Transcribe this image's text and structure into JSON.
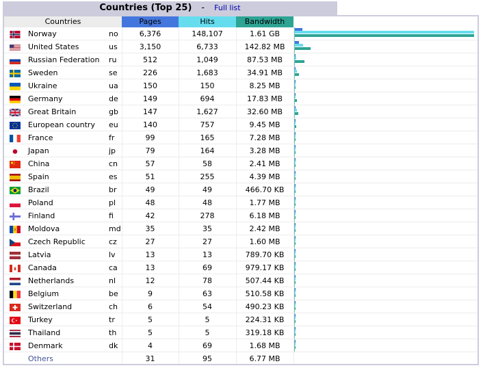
{
  "title": "Countries (Top 25)",
  "separator": "-",
  "full_list_link": "Full list",
  "headers": {
    "countries": "Countries",
    "pages": "Pages",
    "hits": "Hits",
    "bandwidth": "Bandwidth"
  },
  "colors": {
    "pages": "#4477dd",
    "hits": "#66ddee",
    "bandwidth": "#2ea495",
    "frame": "#ccccdd"
  },
  "rows": [
    {
      "flag": "norway-flag",
      "country": "Norway",
      "code": "no",
      "pages": "6,376",
      "hits": "148,107",
      "bandwidth": "1.61 GB",
      "bar_pages": 0.043,
      "bar_hits": 1.0,
      "bar_bw": 1.0
    },
    {
      "flag": "united-states-flag",
      "country": "United States",
      "code": "us",
      "pages": "3,150",
      "hits": "6,733",
      "bandwidth": "142.82 MB",
      "bar_pages": 0.021,
      "bar_hits": 0.045,
      "bar_bw": 0.087
    },
    {
      "flag": "russia-flag",
      "country": "Russian Federation",
      "code": "ru",
      "pages": "512",
      "hits": "1,049",
      "bandwidth": "87.53 MB",
      "bar_pages": 0.0035,
      "bar_hits": 0.007,
      "bar_bw": 0.053
    },
    {
      "flag": "sweden-flag",
      "country": "Sweden",
      "code": "se",
      "pages": "226",
      "hits": "1,683",
      "bandwidth": "34.91 MB",
      "bar_pages": 0.0015,
      "bar_hits": 0.011,
      "bar_bw": 0.021
    },
    {
      "flag": "ukraine-flag",
      "country": "Ukraine",
      "code": "ua",
      "pages": "150",
      "hits": "150",
      "bandwidth": "8.25 MB",
      "bar_pages": 0.001,
      "bar_hits": 0.001,
      "bar_bw": 0.005
    },
    {
      "flag": "germany-flag",
      "country": "Germany",
      "code": "de",
      "pages": "149",
      "hits": "694",
      "bandwidth": "17.83 MB",
      "bar_pages": 0.001,
      "bar_hits": 0.0047,
      "bar_bw": 0.011
    },
    {
      "flag": "great-britain-flag",
      "country": "Great Britain",
      "code": "gb",
      "pages": "147",
      "hits": "1,627",
      "bandwidth": "32.60 MB",
      "bar_pages": 0.001,
      "bar_hits": 0.011,
      "bar_bw": 0.02
    },
    {
      "flag": "europe-flag",
      "country": "European country",
      "code": "eu",
      "pages": "140",
      "hits": "757",
      "bandwidth": "9.45 MB",
      "bar_pages": 0.001,
      "bar_hits": 0.005,
      "bar_bw": 0.006
    },
    {
      "flag": "france-flag",
      "country": "France",
      "code": "fr",
      "pages": "99",
      "hits": "165",
      "bandwidth": "7.28 MB",
      "bar_pages": 0.0007,
      "bar_hits": 0.0011,
      "bar_bw": 0.0045
    },
    {
      "flag": "japan-flag",
      "country": "Japan",
      "code": "jp",
      "pages": "79",
      "hits": "164",
      "bandwidth": "3.28 MB",
      "bar_pages": 0.0005,
      "bar_hits": 0.0011,
      "bar_bw": 0.002
    },
    {
      "flag": "china-flag",
      "country": "China",
      "code": "cn",
      "pages": "57",
      "hits": "58",
      "bandwidth": "2.41 MB",
      "bar_pages": 0.0004,
      "bar_hits": 0.0004,
      "bar_bw": 0.0015
    },
    {
      "flag": "spain-flag",
      "country": "Spain",
      "code": "es",
      "pages": "51",
      "hits": "255",
      "bandwidth": "4.39 MB",
      "bar_pages": 0.0003,
      "bar_hits": 0.0017,
      "bar_bw": 0.0027
    },
    {
      "flag": "brazil-flag",
      "country": "Brazil",
      "code": "br",
      "pages": "49",
      "hits": "49",
      "bandwidth": "466.70 KB",
      "bar_pages": 0.0003,
      "bar_hits": 0.0003,
      "bar_bw": 0.0003
    },
    {
      "flag": "poland-flag",
      "country": "Poland",
      "code": "pl",
      "pages": "48",
      "hits": "48",
      "bandwidth": "1.77 MB",
      "bar_pages": 0.0003,
      "bar_hits": 0.0003,
      "bar_bw": 0.0011
    },
    {
      "flag": "finland-flag",
      "country": "Finland",
      "code": "fi",
      "pages": "42",
      "hits": "278",
      "bandwidth": "6.18 MB",
      "bar_pages": 0.0003,
      "bar_hits": 0.0019,
      "bar_bw": 0.0037
    },
    {
      "flag": "moldova-flag",
      "country": "Moldova",
      "code": "md",
      "pages": "35",
      "hits": "35",
      "bandwidth": "2.42 MB",
      "bar_pages": 0.0002,
      "bar_hits": 0.0002,
      "bar_bw": 0.0015
    },
    {
      "flag": "czech-flag",
      "country": "Czech Republic",
      "code": "cz",
      "pages": "27",
      "hits": "27",
      "bandwidth": "1.60 MB",
      "bar_pages": 0.0002,
      "bar_hits": 0.0002,
      "bar_bw": 0.001
    },
    {
      "flag": "latvia-flag",
      "country": "Latvia",
      "code": "lv",
      "pages": "13",
      "hits": "13",
      "bandwidth": "789.70 KB",
      "bar_pages": 0.0001,
      "bar_hits": 0.0001,
      "bar_bw": 0.0005
    },
    {
      "flag": "canada-flag",
      "country": "Canada",
      "code": "ca",
      "pages": "13",
      "hits": "69",
      "bandwidth": "979.17 KB",
      "bar_pages": 0.0001,
      "bar_hits": 0.0005,
      "bar_bw": 0.0006
    },
    {
      "flag": "netherlands-flag",
      "country": "Netherlands",
      "code": "nl",
      "pages": "12",
      "hits": "78",
      "bandwidth": "507.44 KB",
      "bar_pages": 0.0001,
      "bar_hits": 0.0005,
      "bar_bw": 0.0003
    },
    {
      "flag": "belgium-flag",
      "country": "Belgium",
      "code": "be",
      "pages": "9",
      "hits": "63",
      "bandwidth": "510.58 KB",
      "bar_pages": 0.0001,
      "bar_hits": 0.0004,
      "bar_bw": 0.0003
    },
    {
      "flag": "switzerland-flag",
      "country": "Switzerland",
      "code": "ch",
      "pages": "6",
      "hits": "54",
      "bandwidth": "490.23 KB",
      "bar_pages": 0.0001,
      "bar_hits": 0.0004,
      "bar_bw": 0.0003
    },
    {
      "flag": "turkey-flag",
      "country": "Turkey",
      "code": "tr",
      "pages": "5",
      "hits": "5",
      "bandwidth": "224.31 KB",
      "bar_pages": 0.0001,
      "bar_hits": 0.0001,
      "bar_bw": 0.0001
    },
    {
      "flag": "thailand-flag",
      "country": "Thailand",
      "code": "th",
      "pages": "5",
      "hits": "5",
      "bandwidth": "319.18 KB",
      "bar_pages": 0.0001,
      "bar_hits": 0.0001,
      "bar_bw": 0.0002
    },
    {
      "flag": "denmark-flag",
      "country": "Denmark",
      "code": "dk",
      "pages": "4",
      "hits": "69",
      "bandwidth": "1.68 MB",
      "bar_pages": 0.0001,
      "bar_hits": 0.0005,
      "bar_bw": 0.001
    }
  ],
  "others": {
    "label": "Others",
    "pages": "31",
    "hits": "95",
    "bandwidth": "6.77 MB"
  }
}
